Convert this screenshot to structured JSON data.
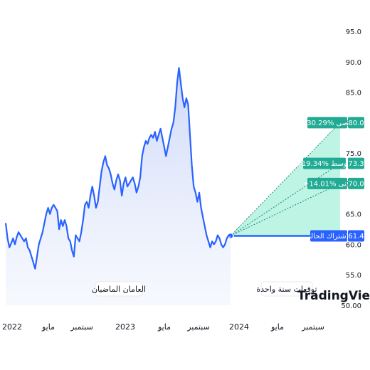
{
  "chart_data": {
    "type": "line",
    "y_ticks": [
      "95.0",
      "90.0",
      "85.0",
      "80.0",
      "75.0",
      "70.0",
      "65.0",
      "60.0",
      "55.0",
      "50.00"
    ],
    "ylim": [
      50,
      95
    ],
    "x_ticks": [
      "2022",
      "مايو",
      "سبتمبر",
      "2023",
      "مايو",
      "سبتمبر",
      "2024",
      "مايو",
      "سبتمبر"
    ],
    "history_label": "العامان الماضيان",
    "forecast_label": "توقعات سنة واحدة",
    "series": [
      {
        "values": [
          63.5,
          61,
          59.5,
          60.2,
          61,
          60,
          61.2,
          62,
          61.5,
          61,
          60.5,
          61,
          59.5,
          59,
          58,
          57,
          56,
          58,
          60,
          61,
          62,
          63.5,
          65,
          66,
          65,
          66,
          66.5,
          66,
          65.5,
          62.5,
          64,
          63,
          64,
          63,
          61,
          60.5,
          59,
          58,
          61.5,
          61,
          60.5,
          62,
          64,
          66.5,
          67,
          66,
          68,
          69.5,
          68,
          66,
          67,
          69.5,
          72,
          73.5,
          74.5,
          73,
          72.5,
          71.5,
          70,
          69,
          70.5,
          71.5,
          70.5,
          68,
          70,
          71,
          69.5,
          70,
          70.5,
          71,
          70,
          68.5,
          69.5,
          71,
          74.5,
          76,
          77,
          76.5,
          77.5,
          78,
          77.5,
          78.5,
          77,
          78,
          79,
          77.5,
          76,
          74.5,
          76,
          77.5,
          79,
          80,
          82.5,
          86.5,
          89,
          86.5,
          84,
          82.5,
          84,
          83,
          78,
          73,
          69.5,
          68.5,
          67,
          68.5,
          66,
          64.5,
          63,
          61.5,
          60.5,
          59.5,
          60.5,
          60,
          60.5,
          61.5,
          61,
          60,
          59.5,
          60,
          61,
          61.5,
          61.4
        ]
      }
    ],
    "forecast": [
      {
        "label": "أقصى",
        "pct": "+30.29%",
        "value": 80.0,
        "value_label": "80.0",
        "color": "#22ab94"
      },
      {
        "label": "متوسط",
        "pct": "+19.34%",
        "value": 73.3,
        "value_label": "73.3",
        "color": "#22ab94"
      },
      {
        "label": "أدنى",
        "pct": "+14.01%",
        "value": 70.0,
        "value_label": "70.0",
        "color": "#22ab94"
      },
      {
        "label": "الاشتراك الحالي",
        "value": 61.4,
        "value_label": "61.4",
        "color": "#2962ff"
      }
    ],
    "grid": false
  },
  "branding": {
    "logo": "TradingView"
  },
  "colors": {
    "line": "#2962ff",
    "fill": "#e3e9fb",
    "forecast": "#22ab94",
    "forecast_fill": "#a8f0db"
  }
}
